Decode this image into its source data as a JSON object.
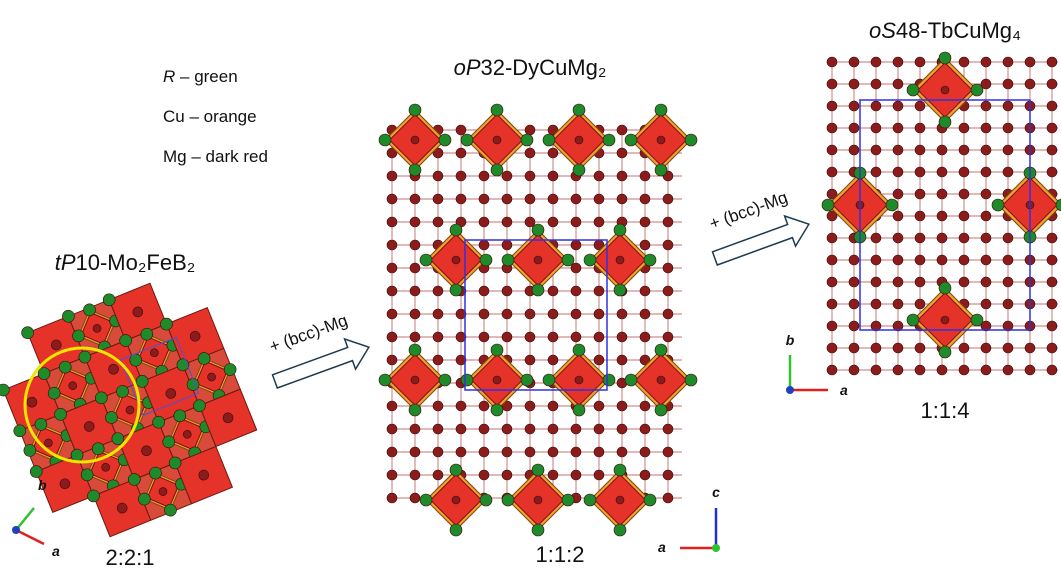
{
  "legend": [
    {
      "symbol": "R",
      "text": "– green"
    },
    {
      "symbol": "Cu",
      "text": "– orange"
    },
    {
      "symbol": "Mg",
      "text": "– dark red"
    }
  ],
  "structures": [
    {
      "prefix": "tP",
      "name": "10-Mo₂FeB₂",
      "ratio": "2:2:1",
      "axes": [
        "b",
        "a"
      ]
    },
    {
      "prefix": "oP",
      "name": "32-DyCuMg₂",
      "ratio": "1:1:2",
      "axes": [
        "c",
        "a"
      ]
    },
    {
      "prefix": "oS",
      "name": "48-TbCuMg₄",
      "ratio": "1:1:4",
      "axes": [
        "b",
        "a"
      ]
    }
  ],
  "arrows": [
    {
      "label": "+ (bcc)-Mg"
    },
    {
      "label": "+ (bcc)-Mg"
    }
  ]
}
